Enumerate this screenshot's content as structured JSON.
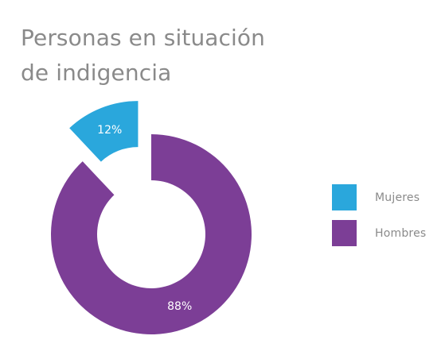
{
  "chart_data": {
    "type": "pie",
    "title_lines": [
      "Personas en situación",
      "de indigencia"
    ],
    "slices": [
      {
        "name": "Mujeres",
        "value": 12,
        "label": "12%",
        "color": "#2aa7dc",
        "exploded": true
      },
      {
        "name": "Hombres",
        "value": 88,
        "label": "88%",
        "color": "#7c3e96",
        "exploded": false
      }
    ],
    "legend": {
      "placement": "right"
    },
    "legend_items": [
      {
        "label": "Mujeres",
        "color": "#2aa7dc"
      },
      {
        "label": "Hombres",
        "color": "#7c3e96"
      }
    ]
  }
}
